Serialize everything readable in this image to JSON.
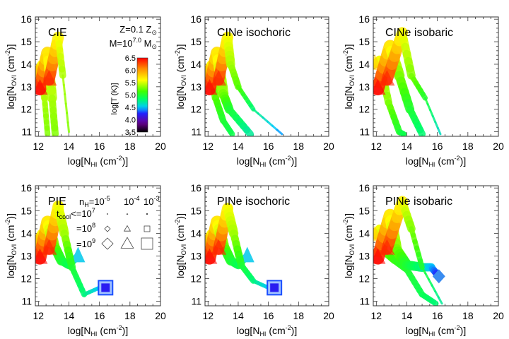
{
  "chart_data": {
    "type": "line",
    "xlim": [
      11.8,
      20
    ],
    "ylim": [
      10.8,
      16.1
    ],
    "xticks": [
      12,
      14,
      16,
      18,
      20
    ],
    "yticks": [
      11,
      12,
      13,
      14,
      15,
      16
    ],
    "xlabel": {
      "pre": "log[N",
      "sub": "HI",
      "post": " (cm",
      "sup": "-2",
      "end": ")]"
    },
    "ylabel": {
      "pre": "log[N",
      "sub": "OVI",
      "post": " (cm",
      "sup": "-2",
      "end": ")]"
    },
    "annotation": {
      "z_pre": "Z=0.1 Z",
      "z_sym": "⊙",
      "m_pre": "M=10",
      "m_sup": "7.0",
      "m_mid": " M",
      "m_sym": "⊙"
    },
    "colorbar": {
      "label": "log[T (K)]",
      "range": [
        3.5,
        6.5
      ],
      "ticks": [
        "6.5",
        "6.0",
        "5.5",
        "5.0",
        "4.5",
        "4.0",
        "3.5"
      ]
    },
    "legend": {
      "nh_pre": "n",
      "nh_sub": "H",
      "nh_eq": "=10",
      "nh_values": [
        "-5",
        "-4",
        "-3"
      ],
      "nh_other_base": "10",
      "tcool_pre": "t",
      "tcool_sub": "cool",
      "tcool_le": "<=10",
      "tcool_1": "7",
      "eq_pre": "=10",
      "tcool_2": "8",
      "tcool_3": "9",
      "markers": [
        "diamond",
        "triangle",
        "square"
      ]
    },
    "panels": [
      {
        "title": "CIE",
        "tracks": [
          {
            "n_H": "1e-3",
            "points": [
              [
                11.9,
                13.6,
                5.9
              ],
              [
                12.2,
                14.0,
                5.6
              ],
              [
                12.4,
                12.5,
                5.4
              ],
              [
                12.6,
                10.9,
                5.3
              ]
            ]
          },
          {
            "n_H": "1e-4",
            "points": [
              [
                12.1,
                12.9,
                6.5
              ],
              [
                12.6,
                14.5,
                5.7
              ],
              [
                12.9,
                12.5,
                5.4
              ],
              [
                13.1,
                10.9,
                5.3
              ]
            ]
          },
          {
            "n_H": "1e-5",
            "points": [
              [
                12.7,
                13.3,
                6.4
              ],
              [
                13.3,
                15.2,
                5.6
              ],
              [
                13.6,
                13.5,
                5.4
              ],
              [
                14.0,
                11.0,
                5.3
              ]
            ]
          }
        ]
      },
      {
        "title": "CINe isochoric",
        "tracks": [
          {
            "n_H": "1e-3",
            "points": [
              [
                11.9,
                13.6,
                5.9
              ],
              [
                12.2,
                14.0,
                5.6
              ],
              [
                12.5,
                12.5,
                5.2
              ],
              [
                13.0,
                11.5,
                5.0
              ],
              [
                13.6,
                10.9,
                4.9
              ]
            ]
          },
          {
            "n_H": "1e-4",
            "points": [
              [
                12.1,
                12.9,
                6.5
              ],
              [
                12.6,
                14.5,
                5.7
              ],
              [
                13.0,
                12.7,
                5.3
              ],
              [
                13.4,
                12.0,
                5.0
              ],
              [
                14.8,
                10.9,
                4.7
              ]
            ]
          },
          {
            "n_H": "1e-5",
            "points": [
              [
                12.7,
                13.3,
                6.4
              ],
              [
                13.3,
                15.2,
                5.6
              ],
              [
                13.5,
                14.0,
                5.4
              ],
              [
                14.0,
                13.0,
                5.2
              ],
              [
                15.0,
                12.0,
                4.8
              ],
              [
                16.9,
                10.9,
                4.4
              ]
            ]
          }
        ]
      },
      {
        "title": "CINe isobaric",
        "tracks": [
          {
            "n_H": "1e-3",
            "points": [
              [
                11.9,
                14.0,
                5.8
              ],
              [
                12.2,
                14.2,
                5.6
              ],
              [
                12.8,
                12.3,
                5.3
              ],
              [
                13.5,
                11.0,
                5.0
              ],
              [
                13.8,
                10.9,
                4.9
              ]
            ]
          },
          {
            "n_H": "1e-4",
            "points": [
              [
                12.1,
                12.9,
                6.5
              ],
              [
                12.9,
                14.8,
                5.7
              ],
              [
                13.5,
                13.5,
                5.3
              ],
              [
                14.2,
                12.0,
                5.0
              ],
              [
                15.0,
                10.9,
                4.8
              ]
            ]
          },
          {
            "n_H": "1e-5",
            "points": [
              [
                12.7,
                13.3,
                6.4
              ],
              [
                13.7,
                15.4,
                5.6
              ],
              [
                14.3,
                13.5,
                5.3
              ],
              [
                15.2,
                12.5,
                5.0
              ],
              [
                16.2,
                10.9,
                4.6
              ]
            ]
          }
        ]
      },
      {
        "title": "PIE",
        "tracks": [
          {
            "n_H": "1e-3",
            "points": [
              [
                11.9,
                13.6,
                5.9
              ],
              [
                12.2,
                14.0,
                5.6
              ],
              [
                12.3,
                13.3,
                5.2
              ],
              [
                12.1,
                13.3,
                5.1
              ]
            ]
          },
          {
            "n_H": "1e-4",
            "end_marker": "triangle",
            "points": [
              [
                12.1,
                12.9,
                6.5
              ],
              [
                12.6,
                14.5,
                5.7
              ],
              [
                13.0,
                13.5,
                5.3
              ],
              [
                13.5,
                12.8,
                5.0
              ],
              [
                14.0,
                12.6,
                4.9
              ],
              [
                14.6,
                13.0,
                4.6
              ]
            ]
          },
          {
            "n_H": "1e-5",
            "end_marker": "square",
            "points": [
              [
                12.7,
                13.3,
                6.4
              ],
              [
                13.3,
                15.2,
                5.6
              ],
              [
                13.7,
                14.0,
                5.4
              ],
              [
                14.2,
                12.5,
                5.0
              ],
              [
                15.0,
                11.3,
                4.8
              ],
              [
                16.0,
                11.6,
                4.5
              ],
              [
                16.4,
                11.6,
                4.2
              ]
            ]
          }
        ]
      },
      {
        "title": "PINe isochoric",
        "tracks": [
          {
            "n_H": "1e-3",
            "points": [
              [
                11.9,
                13.6,
                5.9
              ],
              [
                12.2,
                14.0,
                5.6
              ],
              [
                12.3,
                13.3,
                5.2
              ],
              [
                12.1,
                13.3,
                5.1
              ]
            ]
          },
          {
            "n_H": "1e-4",
            "end_marker": "triangle",
            "points": [
              [
                12.1,
                12.9,
                6.5
              ],
              [
                12.6,
                14.5,
                5.7
              ],
              [
                13.0,
                13.5,
                5.3
              ],
              [
                13.5,
                12.8,
                5.0
              ],
              [
                14.0,
                12.6,
                4.9
              ],
              [
                14.6,
                13.0,
                4.6
              ]
            ]
          },
          {
            "n_H": "1e-5",
            "end_marker": "square",
            "points": [
              [
                12.7,
                13.3,
                6.4
              ],
              [
                13.3,
                15.1,
                5.6
              ],
              [
                13.7,
                14.0,
                5.4
              ],
              [
                14.2,
                12.6,
                5.0
              ],
              [
                15.0,
                11.9,
                4.8
              ],
              [
                16.0,
                11.6,
                4.5
              ],
              [
                16.4,
                11.6,
                4.2
              ]
            ]
          }
        ]
      },
      {
        "title": "PINe isobaric",
        "tracks": [
          {
            "n_H": "1e-3",
            "points": [
              [
                11.9,
                13.9,
                5.8
              ],
              [
                12.2,
                14.2,
                5.6
              ],
              [
                12.5,
                13.2,
                5.3
              ],
              [
                13.2,
                12.8,
                5.1
              ],
              [
                14.0,
                12.4,
                5.0
              ],
              [
                15.0,
                11.3,
                4.9
              ],
              [
                15.9,
                10.9,
                4.8
              ]
            ]
          },
          {
            "n_H": "1e-4",
            "end_marker": "diamond",
            "points": [
              [
                12.1,
                12.9,
                6.5
              ],
              [
                12.9,
                14.8,
                5.7
              ],
              [
                13.3,
                13.3,
                5.3
              ],
              [
                14.0,
                12.6,
                5.0
              ],
              [
                15.0,
                12.5,
                4.8
              ],
              [
                15.6,
                12.5,
                4.5
              ],
              [
                16.1,
                12.1,
                4.2
              ]
            ]
          },
          {
            "n_H": "1e-5",
            "points": [
              [
                12.7,
                13.3,
                6.4
              ],
              [
                13.7,
                15.4,
                5.6
              ],
              [
                14.3,
                14.2,
                5.3
              ],
              [
                15.0,
                12.5,
                5.0
              ],
              [
                16.3,
                10.9,
                4.7
              ]
            ]
          }
        ]
      }
    ]
  }
}
